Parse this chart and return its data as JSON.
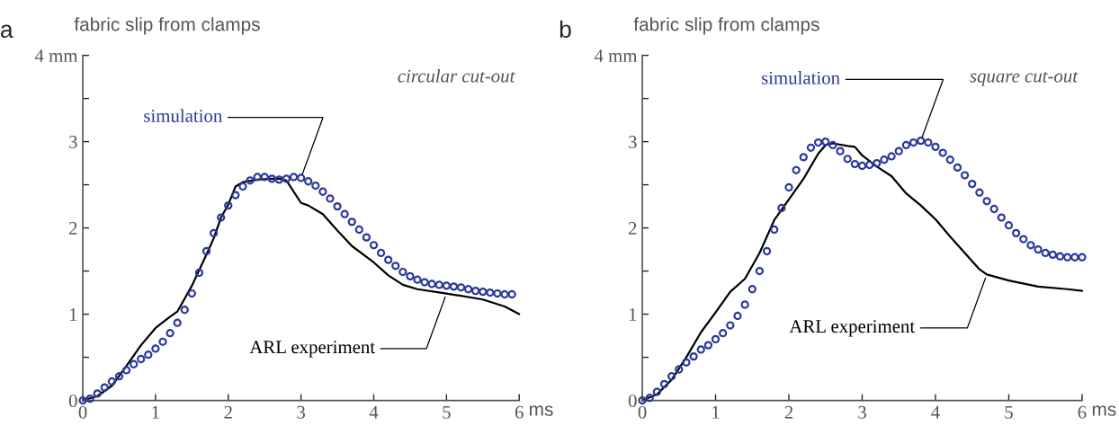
{
  "chart_data": [
    {
      "type": "line",
      "title": "a",
      "ylabel": "fabric slip from clamps",
      "xlabel": "ms",
      "annotations": [
        "circular cut-out"
      ],
      "xlim": [
        0,
        6
      ],
      "xticks": [
        0,
        1,
        2,
        3,
        4,
        5,
        6
      ],
      "ylim": [
        0,
        4
      ],
      "yticks": [
        0,
        {
          "value": 0.5,
          "label": null
        },
        1,
        {
          "value": 1.5,
          "label": null
        },
        2,
        {
          "value": 2.5,
          "label": null
        },
        3,
        {
          "value": 3.5,
          "label": null
        },
        {
          "value": 4,
          "label": "4 mm"
        }
      ],
      "grid": false,
      "legend": false,
      "series": [
        {
          "name": "simulation",
          "type": "scatter",
          "marker": "circle",
          "color": "#2b3a9b",
          "x": [
            0,
            0.1,
            0.2,
            0.3,
            0.4,
            0.5,
            0.6,
            0.7,
            0.8,
            0.9,
            1.0,
            1.1,
            1.2,
            1.3,
            1.4,
            1.5,
            1.6,
            1.7,
            1.8,
            1.9,
            2.0,
            2.1,
            2.2,
            2.3,
            2.4,
            2.5,
            2.6,
            2.7,
            2.8,
            2.9,
            3.0,
            3.1,
            3.2,
            3.3,
            3.4,
            3.5,
            3.6,
            3.7,
            3.8,
            3.9,
            4.0,
            4.1,
            4.2,
            4.3,
            4.4,
            4.5,
            4.6,
            4.7,
            4.8,
            4.9,
            5.0,
            5.1,
            5.2,
            5.3,
            5.4,
            5.5,
            5.6,
            5.7,
            5.8,
            5.9
          ],
          "values": [
            0.0,
            0.02,
            0.08,
            0.15,
            0.22,
            0.28,
            0.35,
            0.42,
            0.48,
            0.53,
            0.6,
            0.68,
            0.78,
            0.9,
            1.05,
            1.24,
            1.48,
            1.73,
            1.94,
            2.12,
            2.26,
            2.38,
            2.48,
            2.55,
            2.59,
            2.59,
            2.57,
            2.56,
            2.57,
            2.59,
            2.58,
            2.54,
            2.49,
            2.42,
            2.34,
            2.25,
            2.16,
            2.07,
            1.98,
            1.89,
            1.8,
            1.71,
            1.63,
            1.56,
            1.49,
            1.44,
            1.4,
            1.37,
            1.35,
            1.34,
            1.33,
            1.32,
            1.31,
            1.29,
            1.27,
            1.26,
            1.25,
            1.24,
            1.23,
            1.23
          ]
        },
        {
          "name": "ARL experiment",
          "type": "line",
          "marker": "none",
          "line_style": "solid",
          "color": "#000000",
          "x": [
            0,
            0.2,
            0.4,
            0.6,
            0.8,
            1.0,
            1.2,
            1.3,
            1.5,
            1.7,
            1.8,
            1.9,
            2.0,
            2.1,
            2.2,
            2.4,
            2.6,
            2.7,
            2.8,
            3.0,
            3.1,
            3.3,
            3.5,
            3.7,
            4.0,
            4.2,
            4.4,
            4.6,
            5.0,
            5.5,
            5.8,
            6.0
          ],
          "values": [
            0,
            0.05,
            0.17,
            0.4,
            0.64,
            0.84,
            0.97,
            1.03,
            1.33,
            1.69,
            1.88,
            2.12,
            2.27,
            2.48,
            2.53,
            2.56,
            2.57,
            2.57,
            2.55,
            2.29,
            2.26,
            2.16,
            1.97,
            1.79,
            1.6,
            1.45,
            1.34,
            1.29,
            1.24,
            1.17,
            1.09,
            1.0
          ]
        }
      ]
    },
    {
      "type": "line",
      "title": "b",
      "ylabel": "fabric slip from clamps",
      "xlabel": "ms",
      "annotations": [
        "square cut-out"
      ],
      "xlim": [
        0,
        6
      ],
      "xticks": [
        0,
        1,
        2,
        3,
        4,
        5,
        6
      ],
      "ylim": [
        0,
        4
      ],
      "yticks": [
        0,
        {
          "value": 0.5,
          "label": null
        },
        1,
        {
          "value": 1.5,
          "label": null
        },
        2,
        {
          "value": 2.5,
          "label": null
        },
        3,
        {
          "value": 3.5,
          "label": null
        },
        {
          "value": 4,
          "label": "4 mm"
        }
      ],
      "grid": false,
      "legend": false,
      "series": [
        {
          "name": "simulation",
          "type": "scatter",
          "marker": "circle",
          "color": "#2b3a9b",
          "x": [
            0,
            0.1,
            0.2,
            0.3,
            0.4,
            0.5,
            0.6,
            0.7,
            0.8,
            0.9,
            1.0,
            1.1,
            1.2,
            1.3,
            1.4,
            1.5,
            1.6,
            1.7,
            1.8,
            1.9,
            2.0,
            2.1,
            2.2,
            2.3,
            2.4,
            2.5,
            2.6,
            2.7,
            2.8,
            2.9,
            3.0,
            3.1,
            3.2,
            3.3,
            3.4,
            3.5,
            3.6,
            3.7,
            3.8,
            3.9,
            4.0,
            4.1,
            4.2,
            4.3,
            4.4,
            4.5,
            4.6,
            4.7,
            4.8,
            4.9,
            5.0,
            5.1,
            5.2,
            5.3,
            5.4,
            5.5,
            5.6,
            5.7,
            5.8,
            5.9,
            6.0
          ],
          "values": [
            0,
            0.03,
            0.1,
            0.19,
            0.28,
            0.36,
            0.44,
            0.51,
            0.59,
            0.64,
            0.71,
            0.78,
            0.87,
            0.98,
            1.11,
            1.29,
            1.5,
            1.73,
            1.98,
            2.23,
            2.47,
            2.67,
            2.82,
            2.93,
            2.99,
            3.0,
            2.96,
            2.89,
            2.8,
            2.74,
            2.72,
            2.73,
            2.75,
            2.79,
            2.83,
            2.89,
            2.96,
            2.99,
            3.01,
            2.99,
            2.94,
            2.87,
            2.79,
            2.7,
            2.61,
            2.51,
            2.41,
            2.31,
            2.22,
            2.12,
            2.03,
            1.94,
            1.87,
            1.8,
            1.75,
            1.71,
            1.69,
            1.67,
            1.66,
            1.66,
            1.66
          ]
        },
        {
          "name": "ARL experiment",
          "type": "line",
          "marker": "none",
          "line_style": "solid",
          "color": "#000000",
          "x": [
            0,
            0.2,
            0.4,
            0.6,
            0.8,
            1.0,
            1.2,
            1.4,
            1.6,
            1.8,
            2.0,
            2.2,
            2.4,
            2.5,
            2.6,
            2.8,
            2.9,
            3.0,
            3.2,
            3.4,
            3.6,
            3.8,
            4.0,
            4.2,
            4.4,
            4.6,
            4.7,
            5.0,
            5.4,
            5.8,
            6.0
          ],
          "values": [
            0,
            0.07,
            0.24,
            0.5,
            0.79,
            1.02,
            1.26,
            1.41,
            1.71,
            2.09,
            2.33,
            2.57,
            2.86,
            2.96,
            2.98,
            2.95,
            2.94,
            2.84,
            2.71,
            2.6,
            2.4,
            2.26,
            2.1,
            1.9,
            1.71,
            1.52,
            1.46,
            1.39,
            1.32,
            1.29,
            1.27
          ]
        }
      ]
    }
  ]
}
